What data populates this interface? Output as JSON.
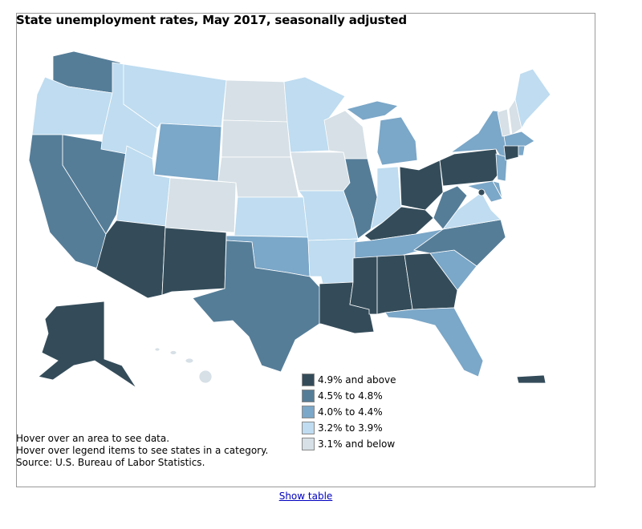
{
  "title": "State unemployment rates, May 2017, seasonally adjusted",
  "legend": [
    {
      "label": "4.9% and above",
      "color": "#344c5a"
    },
    {
      "label": "4.5% to 4.8%",
      "color": "#557d98"
    },
    {
      "label": "4.0% to 4.4%",
      "color": "#7ba7c8"
    },
    {
      "label": "3.2% to 3.9%",
      "color": "#bfdcf0"
    },
    {
      "label": "3.1% and below",
      "color": "#d6e0e6"
    }
  ],
  "notes": {
    "line1": "Hover over an area to see data.",
    "line2": "Hover over legend items to see states in a category.",
    "source": "Source: U.S. Bureau of Labor Statistics."
  },
  "show_table": "Show table",
  "state_categories": {
    "WA": 1,
    "OR": 3,
    "CA": 1,
    "NV": 1,
    "ID": 3,
    "MT": 3,
    "WY": 2,
    "UT": 3,
    "AZ": 0,
    "CO": 4,
    "NM": 0,
    "ND": 4,
    "SD": 4,
    "NE": 4,
    "KS": 3,
    "OK": 2,
    "TX": 1,
    "MN": 3,
    "IA": 4,
    "MO": 3,
    "AR": 3,
    "LA": 0,
    "WI": 4,
    "IL": 1,
    "MI": 2,
    "IN": 3,
    "OH": 0,
    "KY": 0,
    "TN": 2,
    "MS": 0,
    "AL": 0,
    "GA": 0,
    "FL": 2,
    "SC": 2,
    "NC": 1,
    "VA": 3,
    "WV": 1,
    "PA": 0,
    "NY": 2,
    "NJ": 2,
    "DE": 2,
    "MD": 2,
    "DC": 0,
    "CT": 0,
    "RI": 2,
    "MA": 2,
    "VT": 4,
    "NH": 4,
    "ME": 3,
    "AK": 0,
    "HI": 4,
    "PR": 0
  }
}
